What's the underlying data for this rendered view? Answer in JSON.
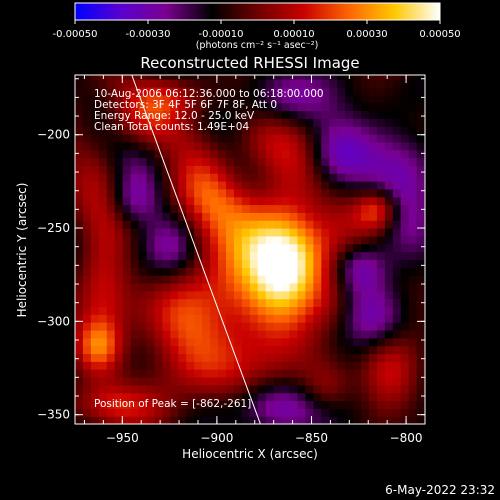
{
  "colorbar": {
    "tick_labels": [
      "-0.00050",
      "-0.00030",
      "-0.00010",
      "0.00010",
      "0.00030",
      "0.00050"
    ],
    "ticks": [
      -0.0005,
      -0.0003,
      -0.0001,
      0.0001,
      0.0003,
      0.0005
    ],
    "range": [
      -0.0005,
      0.0005
    ],
    "units_label": "(photons cm⁻² s⁻¹ asec⁻²)",
    "colormap": [
      "#0000ff",
      "#5a00d0",
      "#7a0090",
      "#000000",
      "#6e0000",
      "#c80000",
      "#ff6400",
      "#ffc800",
      "#ffffff"
    ]
  },
  "chart_data": {
    "type": "heatmap",
    "title": "Reconstructed RHESSI Image",
    "xlabel": "Heliocentric X (arcsec)",
    "ylabel": "Heliocentric Y (arcsec)",
    "xlim": [
      -975,
      -790
    ],
    "ylim": [
      -355,
      -168
    ],
    "x_ticks": [
      -950,
      -900,
      -850,
      -800
    ],
    "x_tick_labels": [
      "−950",
      "−900",
      "−850",
      "−800"
    ],
    "y_ticks": [
      -350,
      -300,
      -250,
      -200
    ],
    "y_tick_labels": [
      "−350",
      "−300",
      "−250",
      "−200"
    ],
    "annotations": [
      "10-Aug-2006 06:12:36.000 to 06:18:00.000",
      "Detectors: 3F 4F 5F 6F 7F 8F, Att 0",
      "Energy Range: 12.0 - 25.0 keV",
      "Clean     Total counts: 1.49E+04"
    ],
    "peak_label": "Position of Peak = [-862,-261]",
    "peak": [
      -862,
      -261
    ],
    "limb_line": [
      [
        -945,
        -168
      ],
      [
        -877,
        -355
      ]
    ],
    "sources": [
      {
        "x": -862,
        "y": -261,
        "sx": 14,
        "sy": 26,
        "amp": 0.0005
      },
      {
        "x": -880,
        "y": -275,
        "sx": 18,
        "sy": 22,
        "amp": 0.00034
      },
      {
        "x": -905,
        "y": -235,
        "sx": 14,
        "sy": 16,
        "amp": 0.00026
      },
      {
        "x": -915,
        "y": -300,
        "sx": 16,
        "sy": 18,
        "amp": 0.00024
      },
      {
        "x": -900,
        "y": -325,
        "sx": 18,
        "sy": 14,
        "amp": 0.00022
      },
      {
        "x": -960,
        "y": -270,
        "sx": 10,
        "sy": 40,
        "amp": 0.00022
      },
      {
        "x": -963,
        "y": -313,
        "sx": 9,
        "sy": 10,
        "amp": 0.0003
      },
      {
        "x": -940,
        "y": -195,
        "sx": 14,
        "sy": 12,
        "amp": 0.0002
      },
      {
        "x": -878,
        "y": -205,
        "sx": 12,
        "sy": 12,
        "amp": 0.00018
      },
      {
        "x": -815,
        "y": -240,
        "sx": 8,
        "sy": 8,
        "amp": 0.0003
      },
      {
        "x": -842,
        "y": -335,
        "sx": 10,
        "sy": 10,
        "amp": 0.0002
      },
      {
        "x": -810,
        "y": -325,
        "sx": 10,
        "sy": 16,
        "amp": 0.00016
      },
      {
        "x": -955,
        "y": -345,
        "sx": 16,
        "sy": 8,
        "amp": 0.00018
      },
      {
        "x": -838,
        "y": -290,
        "sx": 10,
        "sy": 12,
        "amp": 0.00014
      },
      {
        "x": -920,
        "y": -180,
        "sx": 16,
        "sy": 8,
        "amp": 0.00016
      },
      {
        "x": -840,
        "y": -210,
        "sx": 12,
        "sy": 12,
        "amp": -0.00024
      },
      {
        "x": -800,
        "y": -215,
        "sx": 12,
        "sy": 14,
        "amp": -0.00024
      },
      {
        "x": -945,
        "y": -235,
        "sx": 10,
        "sy": 10,
        "amp": -0.00022
      },
      {
        "x": -825,
        "y": -270,
        "sx": 10,
        "sy": 10,
        "amp": -0.00024
      },
      {
        "x": -815,
        "y": -300,
        "sx": 12,
        "sy": 12,
        "amp": -0.0002
      },
      {
        "x": -870,
        "y": -345,
        "sx": 14,
        "sy": 10,
        "amp": -0.00022
      },
      {
        "x": -925,
        "y": -260,
        "sx": 10,
        "sy": 12,
        "amp": -0.00014
      },
      {
        "x": -868,
        "y": -180,
        "sx": 14,
        "sy": 10,
        "amp": -0.00014
      }
    ]
  },
  "footer": {
    "date": "6-May-2022 23:32"
  }
}
